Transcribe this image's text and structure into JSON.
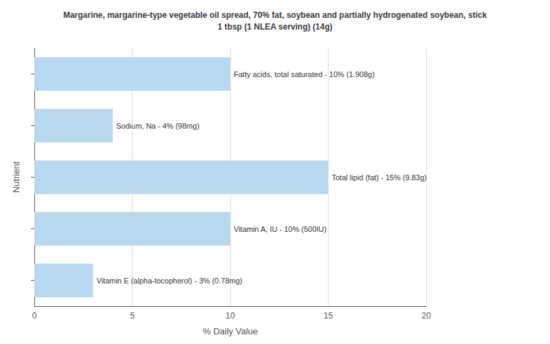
{
  "chart_data": {
    "type": "bar",
    "orientation": "horizontal",
    "title": "Margarine, margarine-type vegetable oil spread, 70% fat, soybean and partially hydrogenated soybean, stick\n1 tbsp (1 NLEA serving) (14g)",
    "xlabel": "% Daily Value",
    "ylabel": "Nutrient",
    "categories": [
      "Vitamin E (alpha-tocopherol)",
      "Vitamin A, IU",
      "Total lipid (fat)",
      "Sodium, Na",
      "Fatty acids, total saturated"
    ],
    "values": [
      3,
      10,
      15,
      4,
      10
    ],
    "data_labels": true,
    "value_labels": [
      "Vitamin E (alpha-tocopherol) - 3% (0.78mg)",
      "Vitamin A, IU - 10% (500IU)",
      "Total lipid (fat) - 15% (9.83g)",
      "Sodium, Na - 4% (98mg)",
      "Fatty acids, total saturated - 10% (1.908g)"
    ],
    "color": "#b8d8f0",
    "xlim": [
      0,
      20
    ],
    "xticks": [
      0,
      5,
      10,
      15,
      20
    ],
    "grid": true,
    "tick_labels": "x"
  }
}
